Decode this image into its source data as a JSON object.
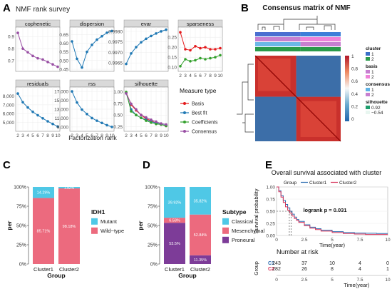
{
  "panel_labels": [
    "A",
    "B",
    "C",
    "D",
    "E"
  ],
  "chart_data": [
    {
      "panel": "A",
      "type": "line",
      "title": "NMF rank survey",
      "xlabel": "Factorization rank",
      "x": [
        2,
        3,
        4,
        5,
        6,
        7,
        8,
        9,
        10
      ],
      "legend_title": "Measure type",
      "legend": [
        {
          "name": "Basis",
          "color": "#e41a1c"
        },
        {
          "name": "Best fit",
          "color": "#1f78b4"
        },
        {
          "name": "Coefficients",
          "color": "#33a02c"
        },
        {
          "name": "Consensus",
          "color": "#984ea3"
        }
      ],
      "facets": [
        {
          "name": "cophenetic",
          "ylim": [
            0.63,
            0.96
          ],
          "yticks": [
            "0.9",
            "0.8",
            "0.7"
          ],
          "ytickvals": [
            0.9,
            0.8,
            0.7
          ],
          "series": [
            {
              "name": "Consensus",
              "color": "#984ea3",
              "values": [
                0.93,
                0.8,
                0.77,
                0.74,
                0.72,
                0.71,
                0.69,
                0.67,
                0.65
              ]
            }
          ]
        },
        {
          "name": "dispersion",
          "ylim": [
            0.45,
            0.68
          ],
          "yticks": [
            "0.65",
            "0.60",
            "0.55",
            "0.50",
            "0.45"
          ],
          "ytickvals": [
            0.65,
            0.6,
            0.55,
            0.5,
            0.45
          ],
          "series": [
            {
              "name": "Best fit",
              "color": "#1f78b4",
              "values": [
                0.61,
                0.51,
                0.46,
                0.55,
                0.59,
                0.62,
                0.64,
                0.66,
                0.67
              ]
            }
          ]
        },
        {
          "name": "evar",
          "ylim": [
            0.9962,
            0.9981
          ],
          "yticks": [
            "0.9980",
            "0.9975",
            "0.9970",
            "0.9965"
          ],
          "ytickvals": [
            0.998,
            0.9975,
            0.997,
            0.9965
          ],
          "series": [
            {
              "name": "Best fit",
              "color": "#1f78b4",
              "values": [
                0.99645,
                0.99695,
                0.99725,
                0.99748,
                0.99765,
                0.99778,
                0.9979,
                0.998,
                0.99808
              ]
            }
          ]
        },
        {
          "name": "sparseness",
          "ylim": [
            0.09,
            0.29
          ],
          "yticks": [
            "0.25",
            "0.20",
            "0.15",
            "0.10"
          ],
          "ytickvals": [
            0.25,
            0.2,
            0.15,
            0.1
          ],
          "series": [
            {
              "name": "Basis",
              "color": "#e41a1c",
              "values": [
                0.275,
                0.19,
                0.185,
                0.205,
                0.195,
                0.2,
                0.19,
                0.19,
                0.195
              ]
            },
            {
              "name": "Coefficients",
              "color": "#33a02c",
              "values": [
                0.105,
                0.14,
                0.13,
                0.135,
                0.145,
                0.14,
                0.145,
                0.15,
                0.16
              ]
            }
          ]
        },
        {
          "name": "residuals",
          "ylim": [
            4200,
            8800
          ],
          "yticks": [
            "8,000",
            "7,000",
            "6,000",
            "5,000"
          ],
          "ytickvals": [
            8000,
            7000,
            6000,
            5000
          ],
          "series": [
            {
              "name": "Best fit",
              "color": "#1f78b4",
              "values": [
                8300,
                7300,
                6700,
                6200,
                5800,
                5450,
                5100,
                4800,
                4500
              ]
            }
          ]
        },
        {
          "name": "rss",
          "ylim": [
            8500,
            17500
          ],
          "yticks": [
            "17,000",
            "15,000",
            "13,000",
            "11,000",
            "9,000"
          ],
          "ytickvals": [
            17000,
            15000,
            13000,
            11000,
            9000
          ],
          "series": [
            {
              "name": "Best fit",
              "color": "#1f78b4",
              "values": [
                17000,
                14500,
                12900,
                11900,
                11000,
                10400,
                9900,
                9400,
                9000
              ]
            }
          ]
        },
        {
          "name": "silhouette",
          "ylim": [
            0.2,
            1.05
          ],
          "yticks": [
            "1.00",
            "0.75",
            "0.50",
            "0.25"
          ],
          "ytickvals": [
            1.0,
            0.75,
            0.5,
            0.25
          ],
          "series": [
            {
              "name": "Basis",
              "color": "#e41a1c",
              "values": [
                0.98,
                0.72,
                0.6,
                0.5,
                0.42,
                0.38,
                0.33,
                0.3,
                0.27
              ]
            },
            {
              "name": "Best fit",
              "color": "#1f78b4",
              "values": [
                0.97,
                0.62,
                0.5,
                0.44,
                0.4,
                0.36,
                0.33,
                0.3,
                0.28
              ]
            },
            {
              "name": "Coefficients",
              "color": "#33a02c",
              "values": [
                0.99,
                0.58,
                0.5,
                0.44,
                0.38,
                0.34,
                0.31,
                0.3,
                0.27
              ]
            },
            {
              "name": "Consensus",
              "color": "#984ea3",
              "values": [
                0.96,
                0.74,
                0.62,
                0.5,
                0.45,
                0.4,
                0.36,
                0.32,
                0.3
              ]
            }
          ]
        }
      ]
    },
    {
      "panel": "B",
      "type": "heatmap",
      "title": "Consensus matrix of NMF",
      "colorbar_ticks": [
        "1",
        "0.8",
        "0.6",
        "0.4",
        "0.2",
        "0"
      ],
      "legend": [
        {
          "title": "cluster",
          "items": [
            {
              "label": "1",
              "color": "#3a6fc7"
            },
            {
              "label": "2",
              "color": "#2a9a4a"
            }
          ]
        },
        {
          "title": "basis",
          "items": [
            {
              "label": "1",
              "color": "#c77fd0"
            },
            {
              "label": "2",
              "color": "#ee82d8"
            }
          ]
        },
        {
          "title": "consensus",
          "items": [
            {
              "label": "1",
              "color": "#5fb3e6"
            },
            {
              "label": "2",
              "color": "#c77fd0"
            }
          ]
        },
        {
          "title": "silhouette",
          "items": [
            {
              "label": "0.92",
              "color": "#1f9e6e"
            },
            {
              "label": "−0.54",
              "color": "#e8f6f0"
            }
          ]
        }
      ]
    },
    {
      "panel": "C",
      "type": "bar",
      "xlabel": "Group",
      "ylabel": "per",
      "yticks": [
        "0%",
        "25%",
        "50%",
        "75%",
        "100%"
      ],
      "categories": [
        "Cluster1",
        "Cluster2"
      ],
      "legend_title": "IDH1",
      "series": [
        {
          "name": "Mutant",
          "color": "#4fc8e6",
          "values": [
            14.29,
            1.82
          ],
          "labels": [
            "14.29%",
            "1.82%"
          ]
        },
        {
          "name": "Wild−type",
          "color": "#ec6a7e",
          "values": [
            85.71,
            98.18
          ],
          "labels": [
            "85.71%",
            "98.18%"
          ]
        }
      ]
    },
    {
      "panel": "D",
      "type": "bar",
      "xlabel": "Group",
      "ylabel": "per",
      "yticks": [
        "0%",
        "25%",
        "50%",
        "75%",
        "100%"
      ],
      "categories": [
        "Cluster1",
        "Cluster2"
      ],
      "legend_title": "Subtype",
      "series": [
        {
          "name": "Classical",
          "color": "#4fc8e6",
          "values": [
            39.92,
            35.82
          ],
          "labels": [
            "39.92%",
            "35.82%"
          ]
        },
        {
          "name": "Mesenchymal",
          "color": "#ec6a7e",
          "values": [
            6.58,
            52.84
          ],
          "labels": [
            "6.58%",
            "52.84%"
          ]
        },
        {
          "name": "Proneural",
          "color": "#7d3c98",
          "values": [
            53.5,
            11.35
          ],
          "labels": [
            "53.5%",
            "11.35%"
          ]
        }
      ]
    },
    {
      "panel": "E",
      "type": "line",
      "title": "Overall survival associated with cluster",
      "xlabel": "Time(year)",
      "ylabel": "Survival probability",
      "xlim": [
        0,
        10
      ],
      "ylim": [
        0,
        1
      ],
      "xticks": [
        0,
        2.5,
        5,
        7.5,
        10
      ],
      "yticks": [
        0,
        0.25,
        0.5,
        0.75,
        1
      ],
      "ytick_labels": [
        "0.00",
        "0.25",
        "0.50",
        "0.75",
        "1.00"
      ],
      "legend_title": "Group",
      "annotation": "logrank p = 0.031",
      "series": [
        {
          "name": "Cluster1",
          "color": "#2b6cb0",
          "x": [
            0,
            0.2,
            0.4,
            0.6,
            0.8,
            1.0,
            1.2,
            1.4,
            1.6,
            1.8,
            2.0,
            2.5,
            3,
            3.5,
            4,
            5,
            6,
            7,
            8,
            9,
            10
          ],
          "values": [
            1,
            0.92,
            0.82,
            0.72,
            0.64,
            0.57,
            0.5,
            0.44,
            0.38,
            0.33,
            0.29,
            0.22,
            0.17,
            0.14,
            0.11,
            0.08,
            0.06,
            0.05,
            0.045,
            0.04,
            0.04
          ]
        },
        {
          "name": "Cluster2",
          "color": "#d6335a",
          "x": [
            0,
            0.2,
            0.4,
            0.6,
            0.8,
            1.0,
            1.2,
            1.4,
            1.6,
            1.8,
            2.0,
            2.5,
            3,
            3.5,
            4,
            5,
            6,
            7,
            8,
            9,
            10
          ],
          "values": [
            1,
            0.9,
            0.79,
            0.68,
            0.59,
            0.52,
            0.46,
            0.4,
            0.35,
            0.31,
            0.27,
            0.2,
            0.15,
            0.12,
            0.09,
            0.06,
            0.04,
            0.03,
            0.02,
            0.02,
            0.02
          ]
        }
      ],
      "risk_table": {
        "title": "Number at risk",
        "ylabel": "Group",
        "xlabel": "Time(year)",
        "times": [
          "0",
          "2.5",
          "5",
          "7.5",
          "10"
        ],
        "rows": [
          {
            "label": "C1",
            "color": "#2b6cb0",
            "values": [
              "243",
              "37",
              "10",
              "4",
              "0"
            ]
          },
          {
            "label": "C2",
            "color": "#d6335a",
            "values": [
              "282",
              "26",
              "8",
              "4",
              "1"
            ]
          }
        ]
      }
    }
  ]
}
